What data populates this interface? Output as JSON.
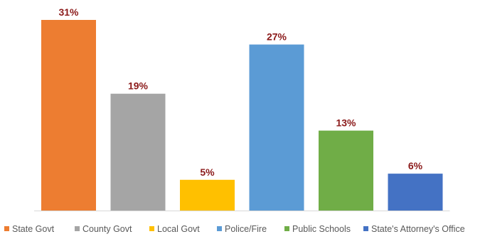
{
  "chart_data": {
    "type": "bar",
    "categories": [
      "State Govt",
      "County Govt",
      "Local Govt",
      "Police/Fire",
      "Public Schools",
      "State's Attorney's Office"
    ],
    "values": [
      31,
      19,
      5,
      27,
      13,
      6
    ],
    "value_labels": [
      "31%",
      "19%",
      "5%",
      "27%",
      "13%",
      "6%"
    ],
    "colors": [
      "#ED7D31",
      "#A5A5A5",
      "#FFC000",
      "#5B9BD5",
      "#70AD47",
      "#4472C4"
    ],
    "label_color": "#8B1A1A",
    "ylim": [
      0,
      31
    ],
    "grid": false,
    "legend_position": "bottom"
  }
}
